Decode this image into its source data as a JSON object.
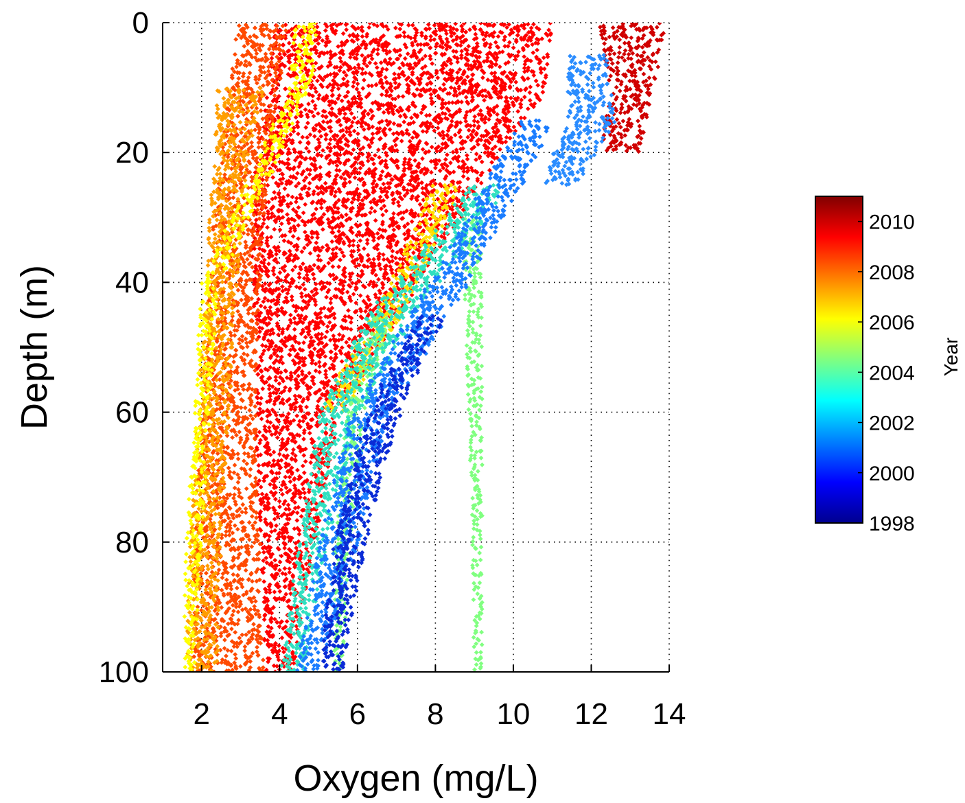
{
  "chart_data": {
    "type": "scatter",
    "title": "",
    "xlabel": "Oxygen (mg/L)",
    "ylabel": "Depth (m)",
    "xlim": [
      1,
      14
    ],
    "ylim": [
      0,
      100
    ],
    "y_inverted": true,
    "x_ticks": [
      2,
      4,
      6,
      8,
      10,
      12,
      14
    ],
    "y_ticks": [
      0,
      20,
      40,
      60,
      80,
      100
    ],
    "grid": true,
    "colorbar": {
      "label": "Year",
      "range": [
        1998,
        2011
      ],
      "ticks": [
        1998,
        2000,
        2002,
        2004,
        2006,
        2008,
        2010
      ],
      "colormap": "jet",
      "placement": "right"
    },
    "series": [
      {
        "year": 2009,
        "color": "#ff0000",
        "profile": [
          [
            0,
            3.9,
            11.0
          ],
          [
            10,
            3.7,
            10.8
          ],
          [
            20,
            3.4,
            9.6
          ],
          [
            30,
            3.3,
            8.6
          ],
          [
            40,
            3.3,
            7.5
          ],
          [
            50,
            3.4,
            6.6
          ],
          [
            60,
            3.4,
            5.5
          ],
          [
            70,
            3.4,
            5.2
          ],
          [
            80,
            3.5,
            4.9
          ],
          [
            90,
            3.6,
            4.6
          ],
          [
            100,
            3.6,
            4.4
          ]
        ]
      },
      {
        "year": 2008,
        "color": "#ff4a00",
        "profile": [
          [
            0,
            2.9,
            4.2
          ],
          [
            10,
            2.7,
            4.0
          ],
          [
            20,
            2.5,
            3.8
          ],
          [
            30,
            2.3,
            3.6
          ],
          [
            40,
            2.2,
            3.5
          ],
          [
            50,
            2.1,
            3.4
          ],
          [
            60,
            2.0,
            3.4
          ],
          [
            70,
            1.9,
            3.4
          ],
          [
            80,
            1.8,
            3.5
          ],
          [
            90,
            1.8,
            3.5
          ],
          [
            100,
            1.8,
            3.6
          ]
        ]
      },
      {
        "year": 2007,
        "color": "#ff9e00",
        "profile": [
          [
            10,
            2.4,
            3.6
          ],
          [
            20,
            2.3,
            3.2
          ],
          [
            40,
            2.1,
            2.9
          ],
          [
            60,
            1.9,
            2.7
          ],
          [
            80,
            1.7,
            2.5
          ],
          [
            100,
            1.6,
            2.4
          ]
        ]
      },
      {
        "year": 2006,
        "color": "#ffff00",
        "profile": [
          [
            0,
            4.4,
            5.0
          ],
          [
            10,
            4.2,
            4.8
          ],
          [
            40,
            2.0,
            2.4
          ],
          [
            60,
            1.8,
            2.2
          ],
          [
            80,
            1.6,
            2.0
          ],
          [
            100,
            1.5,
            1.8
          ]
        ]
      },
      {
        "year": 2006,
        "color": "#ffe000",
        "profile": [
          [
            25,
            7.9,
            8.6
          ],
          [
            35,
            7.2,
            7.9
          ],
          [
            45,
            6.4,
            7.1
          ],
          [
            55,
            5.4,
            6.1
          ],
          [
            60,
            5.1,
            5.7
          ]
        ]
      },
      {
        "year": 2004,
        "color": "#80ff80",
        "profile": [
          [
            30,
            8.7,
            9.2
          ],
          [
            50,
            8.8,
            9.2
          ],
          [
            70,
            8.9,
            9.2
          ],
          [
            100,
            9.0,
            9.2
          ]
        ]
      },
      {
        "year": 2004,
        "color": "#80ff80",
        "profile": [
          [
            45,
            6.4,
            6.9
          ],
          [
            60,
            5.7,
            6.2
          ],
          [
            80,
            5.4,
            5.8
          ],
          [
            100,
            5.4,
            5.6
          ]
        ]
      },
      {
        "year": 2003,
        "color": "#30e0c0",
        "profile": [
          [
            25,
            8.8,
            9.8
          ],
          [
            35,
            7.6,
            8.6
          ],
          [
            45,
            6.2,
            7.4
          ],
          [
            60,
            5.0,
            6.0
          ],
          [
            80,
            4.5,
            5.2
          ],
          [
            100,
            4.0,
            4.6
          ]
        ]
      },
      {
        "year": 2001,
        "color": "#1a7cff",
        "profile": [
          [
            15,
            10.2,
            11.0
          ],
          [
            25,
            9.2,
            10.2
          ],
          [
            40,
            7.8,
            8.8
          ],
          [
            60,
            5.8,
            6.8
          ],
          [
            80,
            5.0,
            6.0
          ],
          [
            100,
            4.4,
            5.0
          ]
        ]
      },
      {
        "year": 1999,
        "color": "#0a2bd6",
        "profile": [
          [
            45,
            7.6,
            8.2
          ],
          [
            55,
            6.6,
            7.4
          ],
          [
            65,
            6.0,
            6.8
          ],
          [
            80,
            5.4,
            6.2
          ],
          [
            100,
            5.0,
            5.6
          ]
        ]
      },
      {
        "year": 2010,
        "color": "#d00000",
        "profile": [
          [
            0,
            12.2,
            13.9
          ],
          [
            10,
            12.5,
            13.6
          ],
          [
            20,
            12.2,
            13.2
          ]
        ]
      },
      {
        "year": 2001,
        "color": "#2a8cff",
        "profile": [
          [
            5,
            11.4,
            12.4
          ],
          [
            15,
            11.4,
            12.6
          ],
          [
            25,
            10.6,
            11.6
          ]
        ]
      }
    ]
  }
}
